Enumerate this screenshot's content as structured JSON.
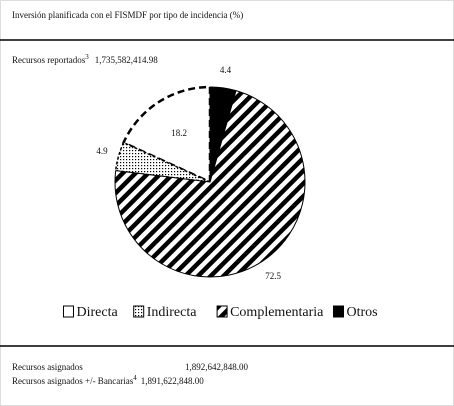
{
  "chart_data": {
    "type": "pie",
    "title": "Inversión planificada con el FISMDF por tipo de incidencia (%)",
    "reported_label": "Recursos reportados",
    "reported_note": "3",
    "reported_value": "1,735,582,414.98",
    "categories": [
      "Directa",
      "Indirecta",
      "Complementaria",
      "Otros"
    ],
    "values": [
      18.2,
      4.9,
      72.5,
      4.4
    ],
    "assigned_label": "Recursos asignados",
    "assigned_value": "1,892,642,848.00",
    "assigned_bank_label": "Recursos asignados +/- Bancarias",
    "assigned_bank_note": "4",
    "assigned_bank_value": "1,891,622,848.00"
  }
}
